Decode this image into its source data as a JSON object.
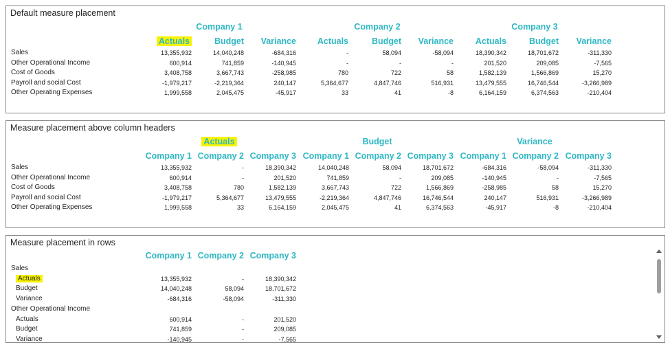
{
  "panel1": {
    "title": "Default measure placement",
    "groups": [
      "Company 1",
      "Company 2",
      "Company 3"
    ],
    "measures": [
      "Actuals",
      "Budget",
      "Variance"
    ],
    "rows": [
      {
        "label": "Sales",
        "values": [
          "13,355,932",
          "14,040,248",
          "-684,316",
          "-",
          "58,094",
          "-58,094",
          "18,390,342",
          "18,701,672",
          "-311,330"
        ]
      },
      {
        "label": "Other Operational Income",
        "values": [
          "600,914",
          "741,859",
          "-140,945",
          "-",
          "-",
          "-",
          "201,520",
          "209,085",
          "-7,565"
        ]
      },
      {
        "label": "Cost of Goods",
        "values": [
          "3,408,758",
          "3,667,743",
          "-258,985",
          "780",
          "722",
          "58",
          "1,582,139",
          "1,566,869",
          "15,270"
        ]
      },
      {
        "label": "Payroll and social Cost",
        "values": [
          "-1,979,217",
          "-2,219,364",
          "240,147",
          "5,364,677",
          "4,847,746",
          "516,931",
          "13,479,555",
          "16,746,544",
          "-3,266,989"
        ]
      },
      {
        "label": "Other Operating Expenses",
        "values": [
          "1,999,558",
          "2,045,475",
          "-45,917",
          "33",
          "41",
          "-8",
          "6,164,159",
          "6,374,563",
          "-210,404"
        ]
      }
    ]
  },
  "panel2": {
    "title": "Measure placement above column headers",
    "groups": [
      "Actuals",
      "Budget",
      "Variance"
    ],
    "companies": [
      "Company 1",
      "Company 2",
      "Company 3"
    ],
    "rows": [
      {
        "label": "Sales",
        "values": [
          "13,355,932",
          "-",
          "18,390,342",
          "14,040,248",
          "58,094",
          "18,701,672",
          "-684,316",
          "-58,094",
          "-311,330"
        ]
      },
      {
        "label": "Other Operational Income",
        "values": [
          "600,914",
          "-",
          "201,520",
          "741,859",
          "-",
          "209,085",
          "-140,945",
          "-",
          "-7,565"
        ]
      },
      {
        "label": "Cost of Goods",
        "values": [
          "3,408,758",
          "780",
          "1,582,139",
          "3,667,743",
          "722",
          "1,566,869",
          "-258,985",
          "58",
          "15,270"
        ]
      },
      {
        "label": "Payroll and social Cost",
        "values": [
          "-1,979,217",
          "5,364,677",
          "13,479,555",
          "-2,219,364",
          "4,847,746",
          "16,746,544",
          "240,147",
          "516,931",
          "-3,266,989"
        ]
      },
      {
        "label": "Other Operating Expenses",
        "values": [
          "1,999,558",
          "33",
          "6,164,159",
          "2,045,475",
          "41",
          "6,374,563",
          "-45,917",
          "-8",
          "-210,404"
        ]
      }
    ]
  },
  "panel3": {
    "title": "Measure placement in rows",
    "companies": [
      "Company 1",
      "Company 2",
      "Company 3"
    ],
    "rows": [
      {
        "label": "Sales",
        "type": "group",
        "values": [
          "",
          "",
          ""
        ]
      },
      {
        "label": "Actuals",
        "type": "measure",
        "values": [
          "13,355,932",
          "-",
          "18,390,342"
        ]
      },
      {
        "label": "Budget",
        "type": "measure",
        "values": [
          "14,040,248",
          "58,094",
          "18,701,672"
        ]
      },
      {
        "label": "Variance",
        "type": "measure",
        "values": [
          "-684,316",
          "-58,094",
          "-311,330"
        ]
      },
      {
        "label": "Other Operational Income",
        "type": "group",
        "values": [
          "",
          "",
          ""
        ]
      },
      {
        "label": "Actuals",
        "type": "measure",
        "values": [
          "600,914",
          "-",
          "201,520"
        ]
      },
      {
        "label": "Budget",
        "type": "measure",
        "values": [
          "741,859",
          "-",
          "209,085"
        ]
      },
      {
        "label": "Variance",
        "type": "measure",
        "values": [
          "-140,945",
          "-",
          "-7,565"
        ]
      }
    ]
  },
  "colors": {
    "header": "#2fb8c4",
    "highlight": "#f7f300",
    "border": "#8a8886"
  },
  "icons": [
    "scrollbar-up-arrow-icon",
    "scrollbar-down-arrow-icon"
  ]
}
